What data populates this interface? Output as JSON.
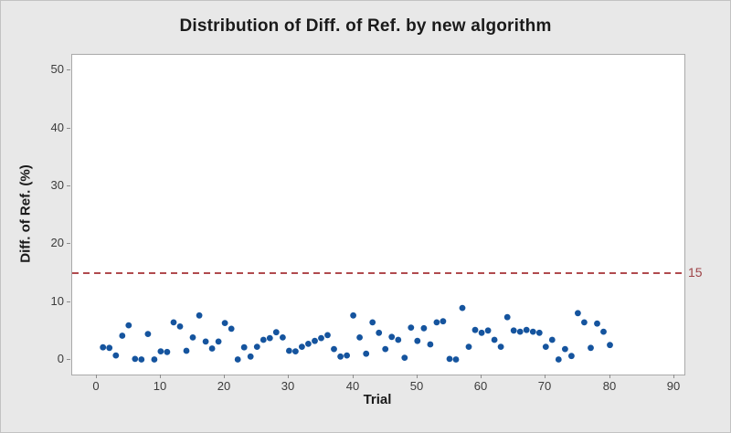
{
  "chart_data": {
    "type": "scatter",
    "title": "Distribution of Diff. of Ref. by new algorithm",
    "xlabel": "Trial",
    "ylabel": "Diff. of Ref. (%)",
    "xlim": [
      -3.8,
      91.6
    ],
    "ylim": [
      -2.5,
      52.7
    ],
    "grid": false,
    "legend": "none",
    "axes": {
      "x_ticks": [
        0,
        10,
        20,
        30,
        40,
        50,
        60,
        70,
        80,
        90
      ],
      "y_ticks": [
        0,
        10,
        20,
        30,
        40,
        50
      ]
    },
    "reference_line": {
      "y": 15,
      "label": "15",
      "color": "#b04a4e",
      "style": "dashed"
    },
    "marker_color": "#15549e",
    "series": [
      {
        "name": "Diff. of Ref.",
        "x": [
          1,
          2,
          3,
          4,
          5,
          6,
          7,
          8,
          9,
          10,
          11,
          12,
          13,
          14,
          15,
          16,
          17,
          18,
          19,
          20,
          21,
          22,
          23,
          24,
          25,
          26,
          27,
          28,
          29,
          30,
          31,
          32,
          33,
          34,
          35,
          36,
          37,
          38,
          39,
          40,
          41,
          42,
          43,
          44,
          45,
          46,
          47,
          48,
          49,
          50,
          51,
          52,
          53,
          54,
          55,
          56,
          57,
          58,
          59,
          60,
          61,
          62,
          63,
          64,
          65,
          66,
          67,
          68,
          69,
          70,
          71,
          72,
          73,
          74,
          75,
          76,
          77,
          78,
          79,
          80
        ],
        "y": [
          2.2,
          2.1,
          0.8,
          4.2,
          6.0,
          0.2,
          0.1,
          4.5,
          0.1,
          1.5,
          1.4,
          6.5,
          5.8,
          1.6,
          3.9,
          7.7,
          3.2,
          2.0,
          3.2,
          6.4,
          5.4,
          0.1,
          2.2,
          0.6,
          2.3,
          3.5,
          3.8,
          4.8,
          3.9,
          1.6,
          1.5,
          2.3,
          2.8,
          3.3,
          3.8,
          4.3,
          1.9,
          0.6,
          0.8,
          7.7,
          3.9,
          1.1,
          6.5,
          4.7,
          1.9,
          4.0,
          3.5,
          0.4,
          5.6,
          3.3,
          5.5,
          2.7,
          6.5,
          6.7,
          0.2,
          0.1,
          9.0,
          2.3,
          5.2,
          4.7,
          5.1,
          3.5,
          2.3,
          7.4,
          5.1,
          4.9,
          5.2,
          4.9,
          4.7,
          2.3,
          3.5,
          0.1,
          1.9,
          0.7,
          8.1,
          6.5,
          2.1,
          6.3,
          4.9,
          2.6
        ]
      }
    ]
  }
}
